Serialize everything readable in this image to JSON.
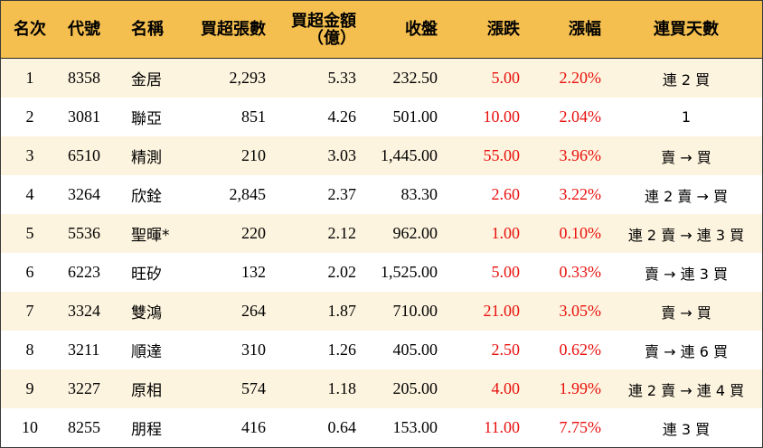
{
  "headers": {
    "rank": "名次",
    "code": "代號",
    "name": "名稱",
    "net_lots": "買超張數",
    "net_amount_line1": "買超金額",
    "net_amount_line2": "（億）",
    "close": "收盤",
    "change": "漲跌",
    "change_pct": "漲幅",
    "streak": "連買天數"
  },
  "colors": {
    "header_bg": "#f5bf4f",
    "odd_row_bg": "#fdf4df",
    "even_row_bg": "#ffffff",
    "up_red": "#e8100c"
  },
  "rows": [
    {
      "rank": "1",
      "code": "8358",
      "name": "金居",
      "net_lots": "2,293",
      "net_amount": "5.33",
      "close": "232.50",
      "change": "5.00",
      "change_pct": "2.20%",
      "streak": "連 2 買"
    },
    {
      "rank": "2",
      "code": "3081",
      "name": "聯亞",
      "net_lots": "851",
      "net_amount": "4.26",
      "close": "501.00",
      "change": "10.00",
      "change_pct": "2.04%",
      "streak": "1"
    },
    {
      "rank": "3",
      "code": "6510",
      "name": "精測",
      "net_lots": "210",
      "net_amount": "3.03",
      "close": "1,445.00",
      "change": "55.00",
      "change_pct": "3.96%",
      "streak": "賣 → 買"
    },
    {
      "rank": "4",
      "code": "3264",
      "name": "欣銓",
      "net_lots": "2,845",
      "net_amount": "2.37",
      "close": "83.30",
      "change": "2.60",
      "change_pct": "3.22%",
      "streak": "連 2 賣 → 買"
    },
    {
      "rank": "5",
      "code": "5536",
      "name": "聖暉*",
      "net_lots": "220",
      "net_amount": "2.12",
      "close": "962.00",
      "change": "1.00",
      "change_pct": "0.10%",
      "streak": "連 2 賣 → 連 3 買"
    },
    {
      "rank": "6",
      "code": "6223",
      "name": "旺矽",
      "net_lots": "132",
      "net_amount": "2.02",
      "close": "1,525.00",
      "change": "5.00",
      "change_pct": "0.33%",
      "streak": "賣 → 連 3 買"
    },
    {
      "rank": "7",
      "code": "3324",
      "name": "雙鴻",
      "net_lots": "264",
      "net_amount": "1.87",
      "close": "710.00",
      "change": "21.00",
      "change_pct": "3.05%",
      "streak": "賣 → 買"
    },
    {
      "rank": "8",
      "code": "3211",
      "name": "順達",
      "net_lots": "310",
      "net_amount": "1.26",
      "close": "405.00",
      "change": "2.50",
      "change_pct": "0.62%",
      "streak": "賣 → 連 6 買"
    },
    {
      "rank": "9",
      "code": "3227",
      "name": "原相",
      "net_lots": "574",
      "net_amount": "1.18",
      "close": "205.00",
      "change": "4.00",
      "change_pct": "1.99%",
      "streak": "連 2 賣 → 連 4 買"
    },
    {
      "rank": "10",
      "code": "8255",
      "name": "朋程",
      "net_lots": "416",
      "net_amount": "0.64",
      "close": "153.00",
      "change": "11.00",
      "change_pct": "7.75%",
      "streak": "連 3 買"
    }
  ]
}
